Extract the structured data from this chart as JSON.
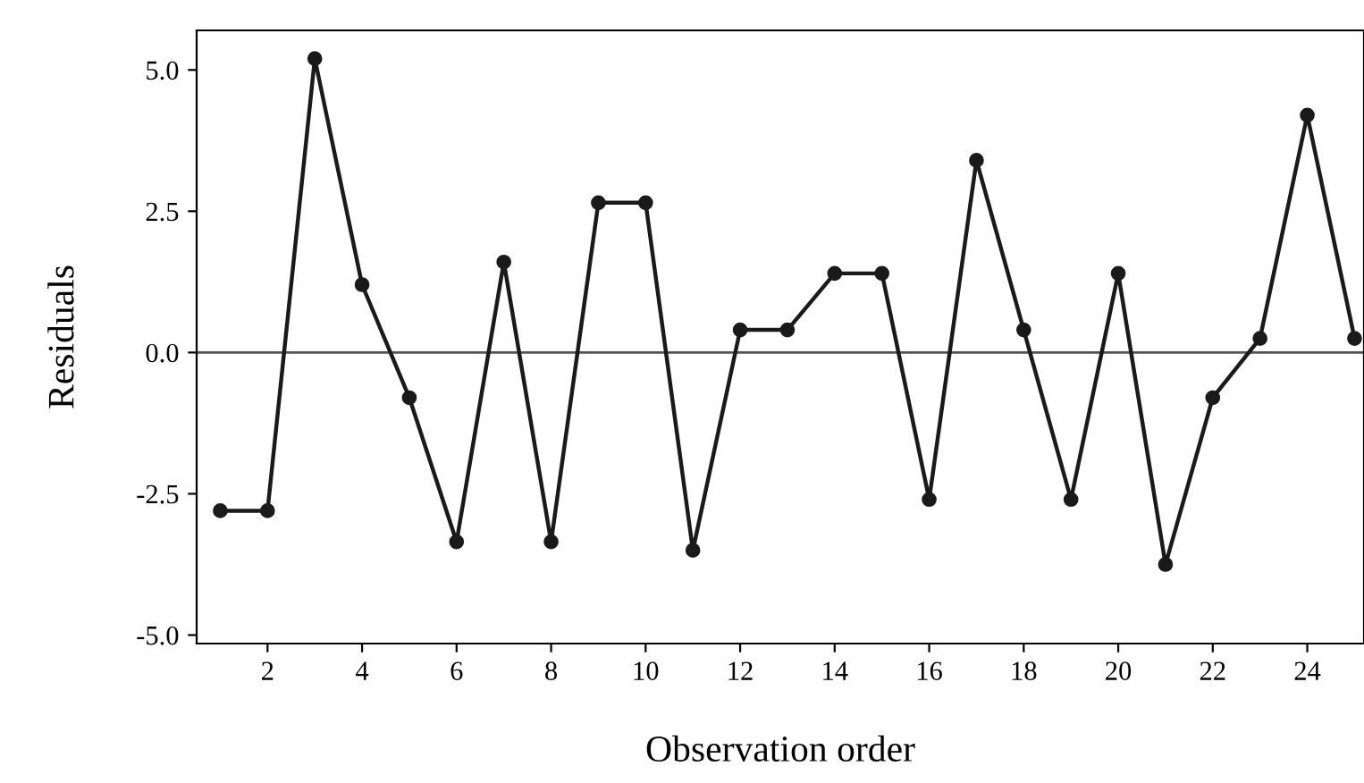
{
  "chart_data": {
    "type": "line",
    "xlabel": "Observation order",
    "ylabel": "Residuals",
    "x": [
      1,
      2,
      3,
      4,
      5,
      6,
      7,
      8,
      9,
      10,
      11,
      12,
      13,
      14,
      15,
      16,
      17,
      18,
      19,
      20,
      21,
      22,
      23,
      24,
      25
    ],
    "series": [
      {
        "color": "#1a1a1a",
        "values": [
          -2.8,
          -2.8,
          5.2,
          1.2,
          -0.8,
          -3.35,
          1.6,
          -3.35,
          2.65,
          2.65,
          -3.5,
          0.4,
          0.4,
          1.4,
          1.4,
          -2.6,
          3.4,
          0.4,
          -2.6,
          1.4,
          -3.75,
          -0.8,
          0.25,
          4.2,
          0.25
        ]
      }
    ],
    "xlim": [
      0.5,
      25.2
    ],
    "xticks": [
      2,
      4,
      6,
      8,
      10,
      12,
      14,
      16,
      18,
      20,
      22,
      24
    ],
    "ylim": [
      -5.15,
      5.7
    ],
    "yticks": [
      {
        "value": -5,
        "label": "-5.0"
      },
      {
        "value": -2.5,
        "label": "-2.5"
      },
      {
        "value": 0,
        "label": "0.0"
      },
      {
        "value": 2.5,
        "label": "2.5"
      },
      {
        "value": 5,
        "label": "5.0"
      }
    ],
    "ref_lines": [
      {
        "axis": "y",
        "value": 0,
        "color": "#555555"
      }
    ],
    "marker": "circle",
    "line_style": "solid",
    "grid": false,
    "legend": false
  }
}
